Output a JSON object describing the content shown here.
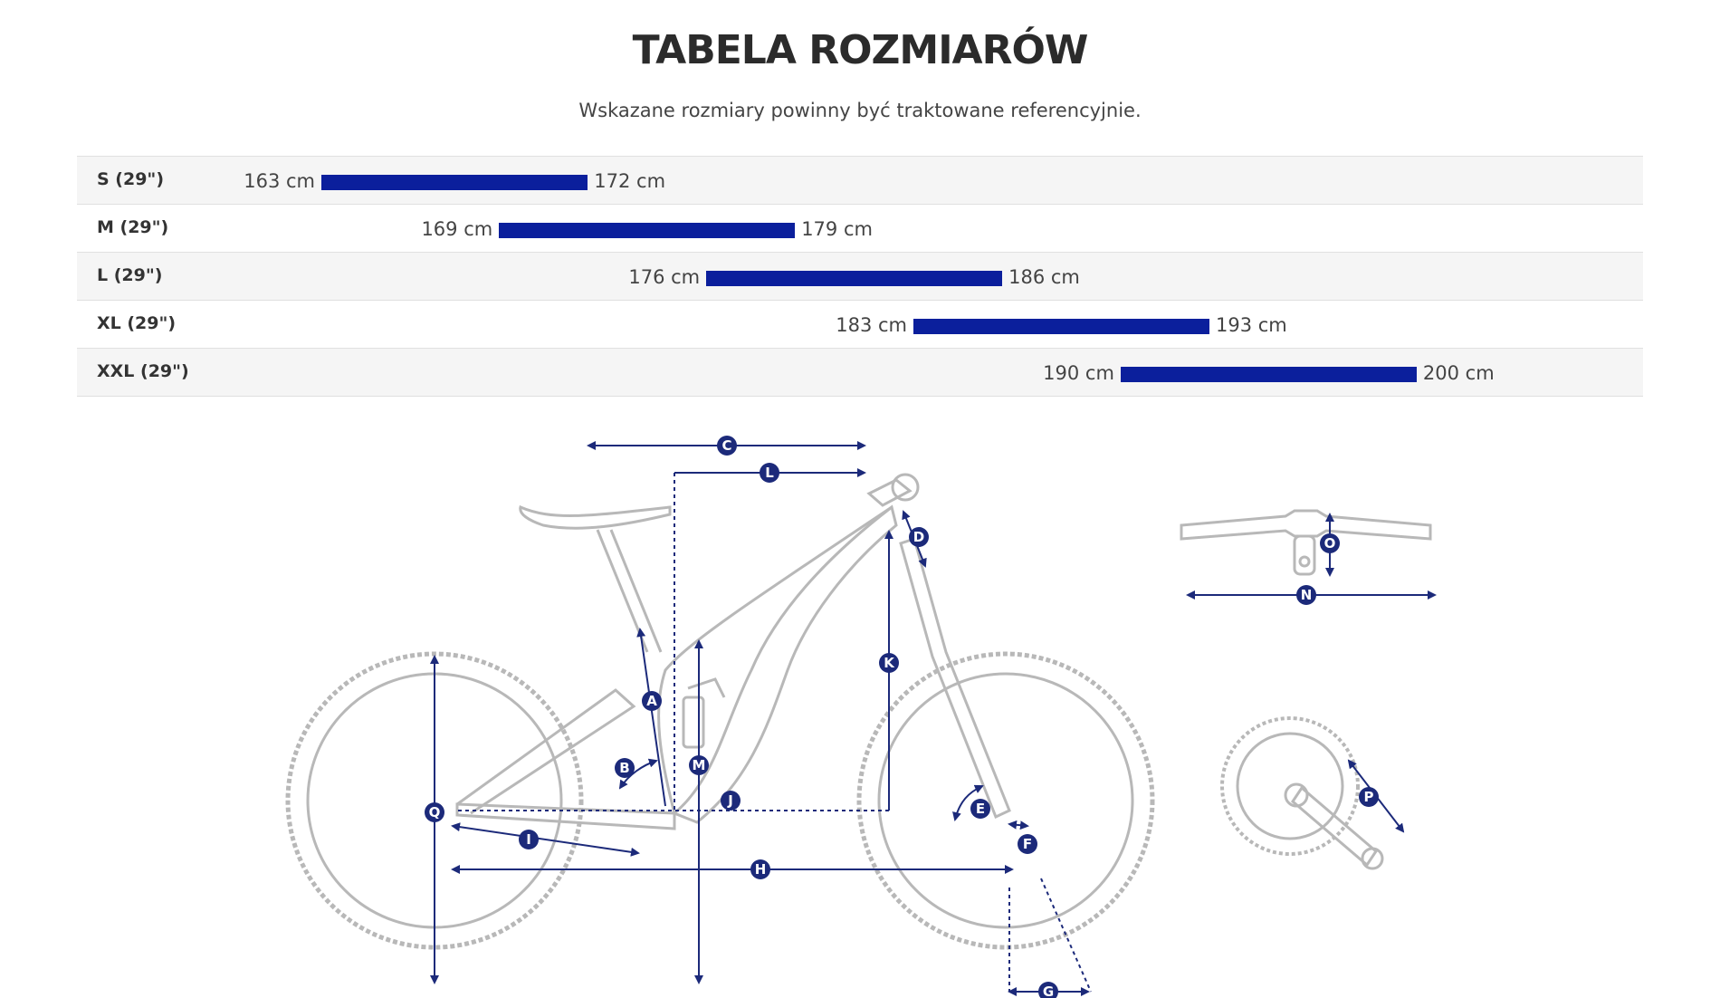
{
  "header": {
    "title": "TABELA ROZMIARÓW",
    "subtitle": "Wskazane rozmiary powinny być traktowane referencyjnie."
  },
  "sizes": [
    {
      "label": "S (29\")",
      "min_cm": 163,
      "max_cm": 172,
      "min_text": "163 cm",
      "max_text": "172 cm"
    },
    {
      "label": "M (29\")",
      "min_cm": 169,
      "max_cm": 179,
      "min_text": "169 cm",
      "max_text": "179 cm"
    },
    {
      "label": "L (29\")",
      "min_cm": 176,
      "max_cm": 186,
      "min_text": "176 cm",
      "max_text": "186 cm"
    },
    {
      "label": "XL (29\")",
      "min_cm": 183,
      "max_cm": 193,
      "min_text": "183 cm",
      "max_text": "193 cm"
    },
    {
      "label": "XXL (29\")",
      "min_cm": 190,
      "max_cm": 200,
      "min_text": "190 cm",
      "max_text": "200 cm"
    }
  ],
  "colors": {
    "bar": "#0b1f9c",
    "diagram_line": "#1c2a7a",
    "bike_outline": "#b8b8b8"
  },
  "diagram": {
    "labels": [
      "A",
      "B",
      "C",
      "D",
      "E",
      "F",
      "G",
      "H",
      "I",
      "J",
      "K",
      "L",
      "M",
      "N",
      "O",
      "P",
      "Q"
    ]
  }
}
